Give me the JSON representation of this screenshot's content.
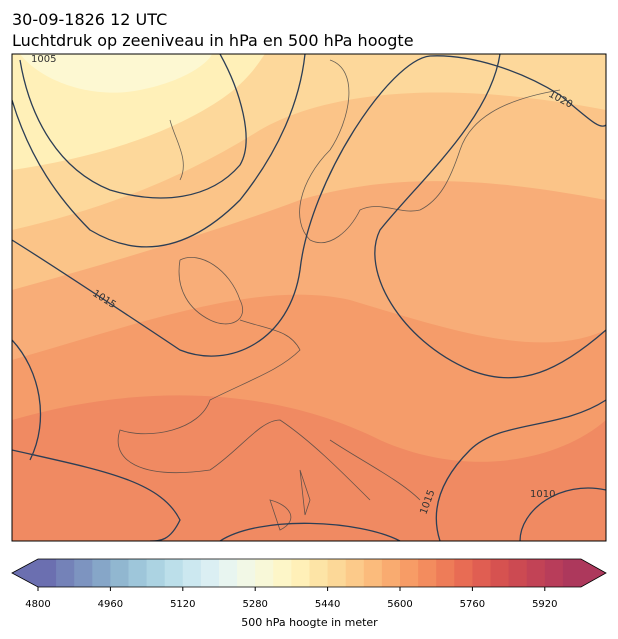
{
  "header": {
    "line1": "30-09-1826 12 UTC",
    "line2": "Luchtdruk op zeeniveau in hPa en 500 hPa hoogte"
  },
  "map": {
    "contour_labels": [
      "1005",
      "1020",
      "1015",
      "1015",
      "1010"
    ]
  },
  "colorbar": {
    "lim": [
      4800,
      6000
    ],
    "ticks": [
      4800,
      4960,
      5120,
      5280,
      5440,
      5600,
      5760,
      5920
    ],
    "label": "500 hPa hoogte in meter",
    "colors": [
      "#6b6fb0",
      "#7482b8",
      "#7d94c0",
      "#86a6c8",
      "#91b7d0",
      "#9ec6da",
      "#acd3e2",
      "#bcdfea",
      "#cce8f0",
      "#dbeff3",
      "#e8f5f0",
      "#f2f8e6",
      "#f8f8d8",
      "#fdf6c8",
      "#fff0b8",
      "#fde4a6",
      "#fcd898",
      "#fcca8a",
      "#fbbb7c",
      "#f9ab70",
      "#f79c66",
      "#f38c5e",
      "#ee7c58",
      "#e86c54",
      "#e05e52",
      "#d65250",
      "#cc4a52",
      "#c24356",
      "#b83d5a",
      "#ad385c"
    ]
  }
}
